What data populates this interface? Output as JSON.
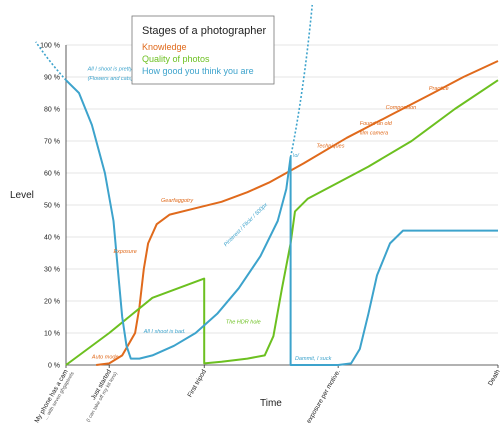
{
  "chart_data": {
    "type": "line",
    "title": "Stages of a photographer",
    "xlabel": "Time",
    "ylabel": "Level",
    "ylim": [
      0,
      100
    ],
    "xlim": [
      0,
      100
    ],
    "yticks": [
      "0 %",
      "10 %",
      "20 %",
      "30 %",
      "40 %",
      "50 %",
      "60 %",
      "70 %",
      "80 %",
      "90 %",
      "100 %"
    ],
    "x_categories": [
      {
        "x": 0,
        "label": "My phone has a cam",
        "sub": "... with seven ghgapixels"
      },
      {
        "x": 10,
        "label": "Just started",
        "sub": "(I can take off my kit lens)"
      },
      {
        "x": 32,
        "label": "First tripod",
        "sub": ""
      },
      {
        "x": 63,
        "label": "One exposure per motive.",
        "sub": ""
      },
      {
        "x": 100,
        "label": "Death",
        "sub": ""
      }
    ],
    "legend_position": "top-center",
    "series": [
      {
        "name": "Knowledge",
        "color": "#e06a1c",
        "points": [
          [
            7,
            0
          ],
          [
            10,
            0.5
          ],
          [
            13,
            3
          ],
          [
            16,
            10
          ],
          [
            17,
            18
          ],
          [
            18,
            30
          ],
          [
            19,
            38
          ],
          [
            21,
            44
          ],
          [
            24,
            47
          ],
          [
            30,
            49
          ],
          [
            36,
            51
          ],
          [
            42,
            54
          ],
          [
            47,
            57
          ],
          [
            55,
            63
          ],
          [
            65,
            71
          ],
          [
            75,
            78
          ],
          [
            85,
            85
          ],
          [
            92,
            90
          ],
          [
            100,
            95
          ]
        ]
      },
      {
        "name": "Quality of photos",
        "color": "#6cc020",
        "points": [
          [
            0,
            0
          ],
          [
            10,
            10
          ],
          [
            20,
            21
          ],
          [
            32,
            27
          ],
          [
            32,
            0.5
          ],
          [
            36,
            1
          ],
          [
            42,
            2
          ],
          [
            46,
            3
          ],
          [
            48,
            9
          ],
          [
            50,
            24
          ],
          [
            52,
            38
          ],
          [
            53,
            48
          ],
          [
            56,
            52
          ],
          [
            63,
            57
          ],
          [
            70,
            62
          ],
          [
            80,
            70
          ],
          [
            90,
            80
          ],
          [
            100,
            89
          ]
        ]
      },
      {
        "name": "How good you think you are",
        "color": "#3da3cc",
        "points": [
          [
            0,
            89
          ],
          [
            3,
            85
          ],
          [
            6,
            75
          ],
          [
            9,
            60
          ],
          [
            11,
            45
          ],
          [
            12,
            30
          ],
          [
            13,
            15
          ],
          [
            14,
            6
          ],
          [
            15,
            2
          ],
          [
            17,
            2
          ],
          [
            20,
            3
          ],
          [
            25,
            6
          ],
          [
            30,
            10
          ],
          [
            35,
            16
          ],
          [
            40,
            24
          ],
          [
            45,
            34
          ],
          [
            49,
            45
          ],
          [
            51,
            55
          ],
          [
            52,
            65
          ],
          [
            52,
            0
          ],
          [
            63,
            0
          ],
          [
            66,
            0.5
          ],
          [
            68,
            5
          ],
          [
            70,
            16
          ],
          [
            72,
            28
          ],
          [
            75,
            38
          ],
          [
            78,
            42
          ],
          [
            100,
            42
          ]
        ]
      }
    ],
    "annotations": [
      {
        "text": "All I shoot is pretty.",
        "color": "#3da3cc",
        "x": 5,
        "y": 92
      },
      {
        "text": "(Flowers and cats)",
        "color": "#3da3cc",
        "x": 5,
        "y": 89
      },
      {
        "text": "Auto mode",
        "color": "#e06a1c",
        "x": 6,
        "y": 2
      },
      {
        "text": "Exposure",
        "color": "#e06a1c",
        "x": 11,
        "y": 35
      },
      {
        "text": "Gearfaggotry",
        "color": "#e06a1c",
        "x": 22,
        "y": 51
      },
      {
        "text": "All I shoot is bad.",
        "color": "#3da3cc",
        "x": 18,
        "y": 10
      },
      {
        "text": "The HDR hole",
        "color": "#6cc020",
        "x": 37,
        "y": 13
      },
      {
        "text": "\\o/",
        "color": "#3da3cc",
        "x": 52.5,
        "y": 65
      },
      {
        "text": "Dammit, I suck",
        "color": "#3da3cc",
        "x": 53,
        "y": 1.5
      },
      {
        "text": "Techniques",
        "color": "#e06a1c",
        "x": 58,
        "y": 68
      },
      {
        "text": "Found an old",
        "color": "#e06a1c",
        "x": 68,
        "y": 75
      },
      {
        "text": "film camera",
        "color": "#e06a1c",
        "x": 68,
        "y": 72
      },
      {
        "text": "Composition",
        "color": "#e06a1c",
        "x": 74,
        "y": 80
      },
      {
        "text": "Practice",
        "color": "#e06a1c",
        "x": 84,
        "y": 86
      }
    ],
    "rotated_annotation": {
      "text": "Pinterest / Flickr / 500px",
      "color": "#3da3cc",
      "x": 37,
      "y": 37
    }
  }
}
